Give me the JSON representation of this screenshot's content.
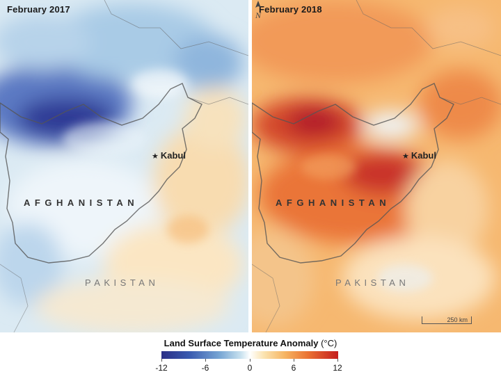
{
  "panels": [
    {
      "label": "February 2017",
      "city": "Kabul",
      "country1": "AFGHANISTAN",
      "country2": "PAKISTAN"
    },
    {
      "label": "February 2018",
      "city": "Kabul",
      "country1": "AFGHANISTAN",
      "country2": "PAKISTAN"
    }
  ],
  "scale": {
    "label": "250 km"
  },
  "legend": {
    "title": "Land Surface Temperature Anomaly",
    "unit": "(°C)",
    "ticks": [
      "-12",
      "-6",
      "0",
      "6",
      "12"
    ]
  },
  "colors": {
    "cold": "#2b2f86",
    "neutral": "#ffffff",
    "hot": "#c41d1d",
    "border": "#555555"
  }
}
